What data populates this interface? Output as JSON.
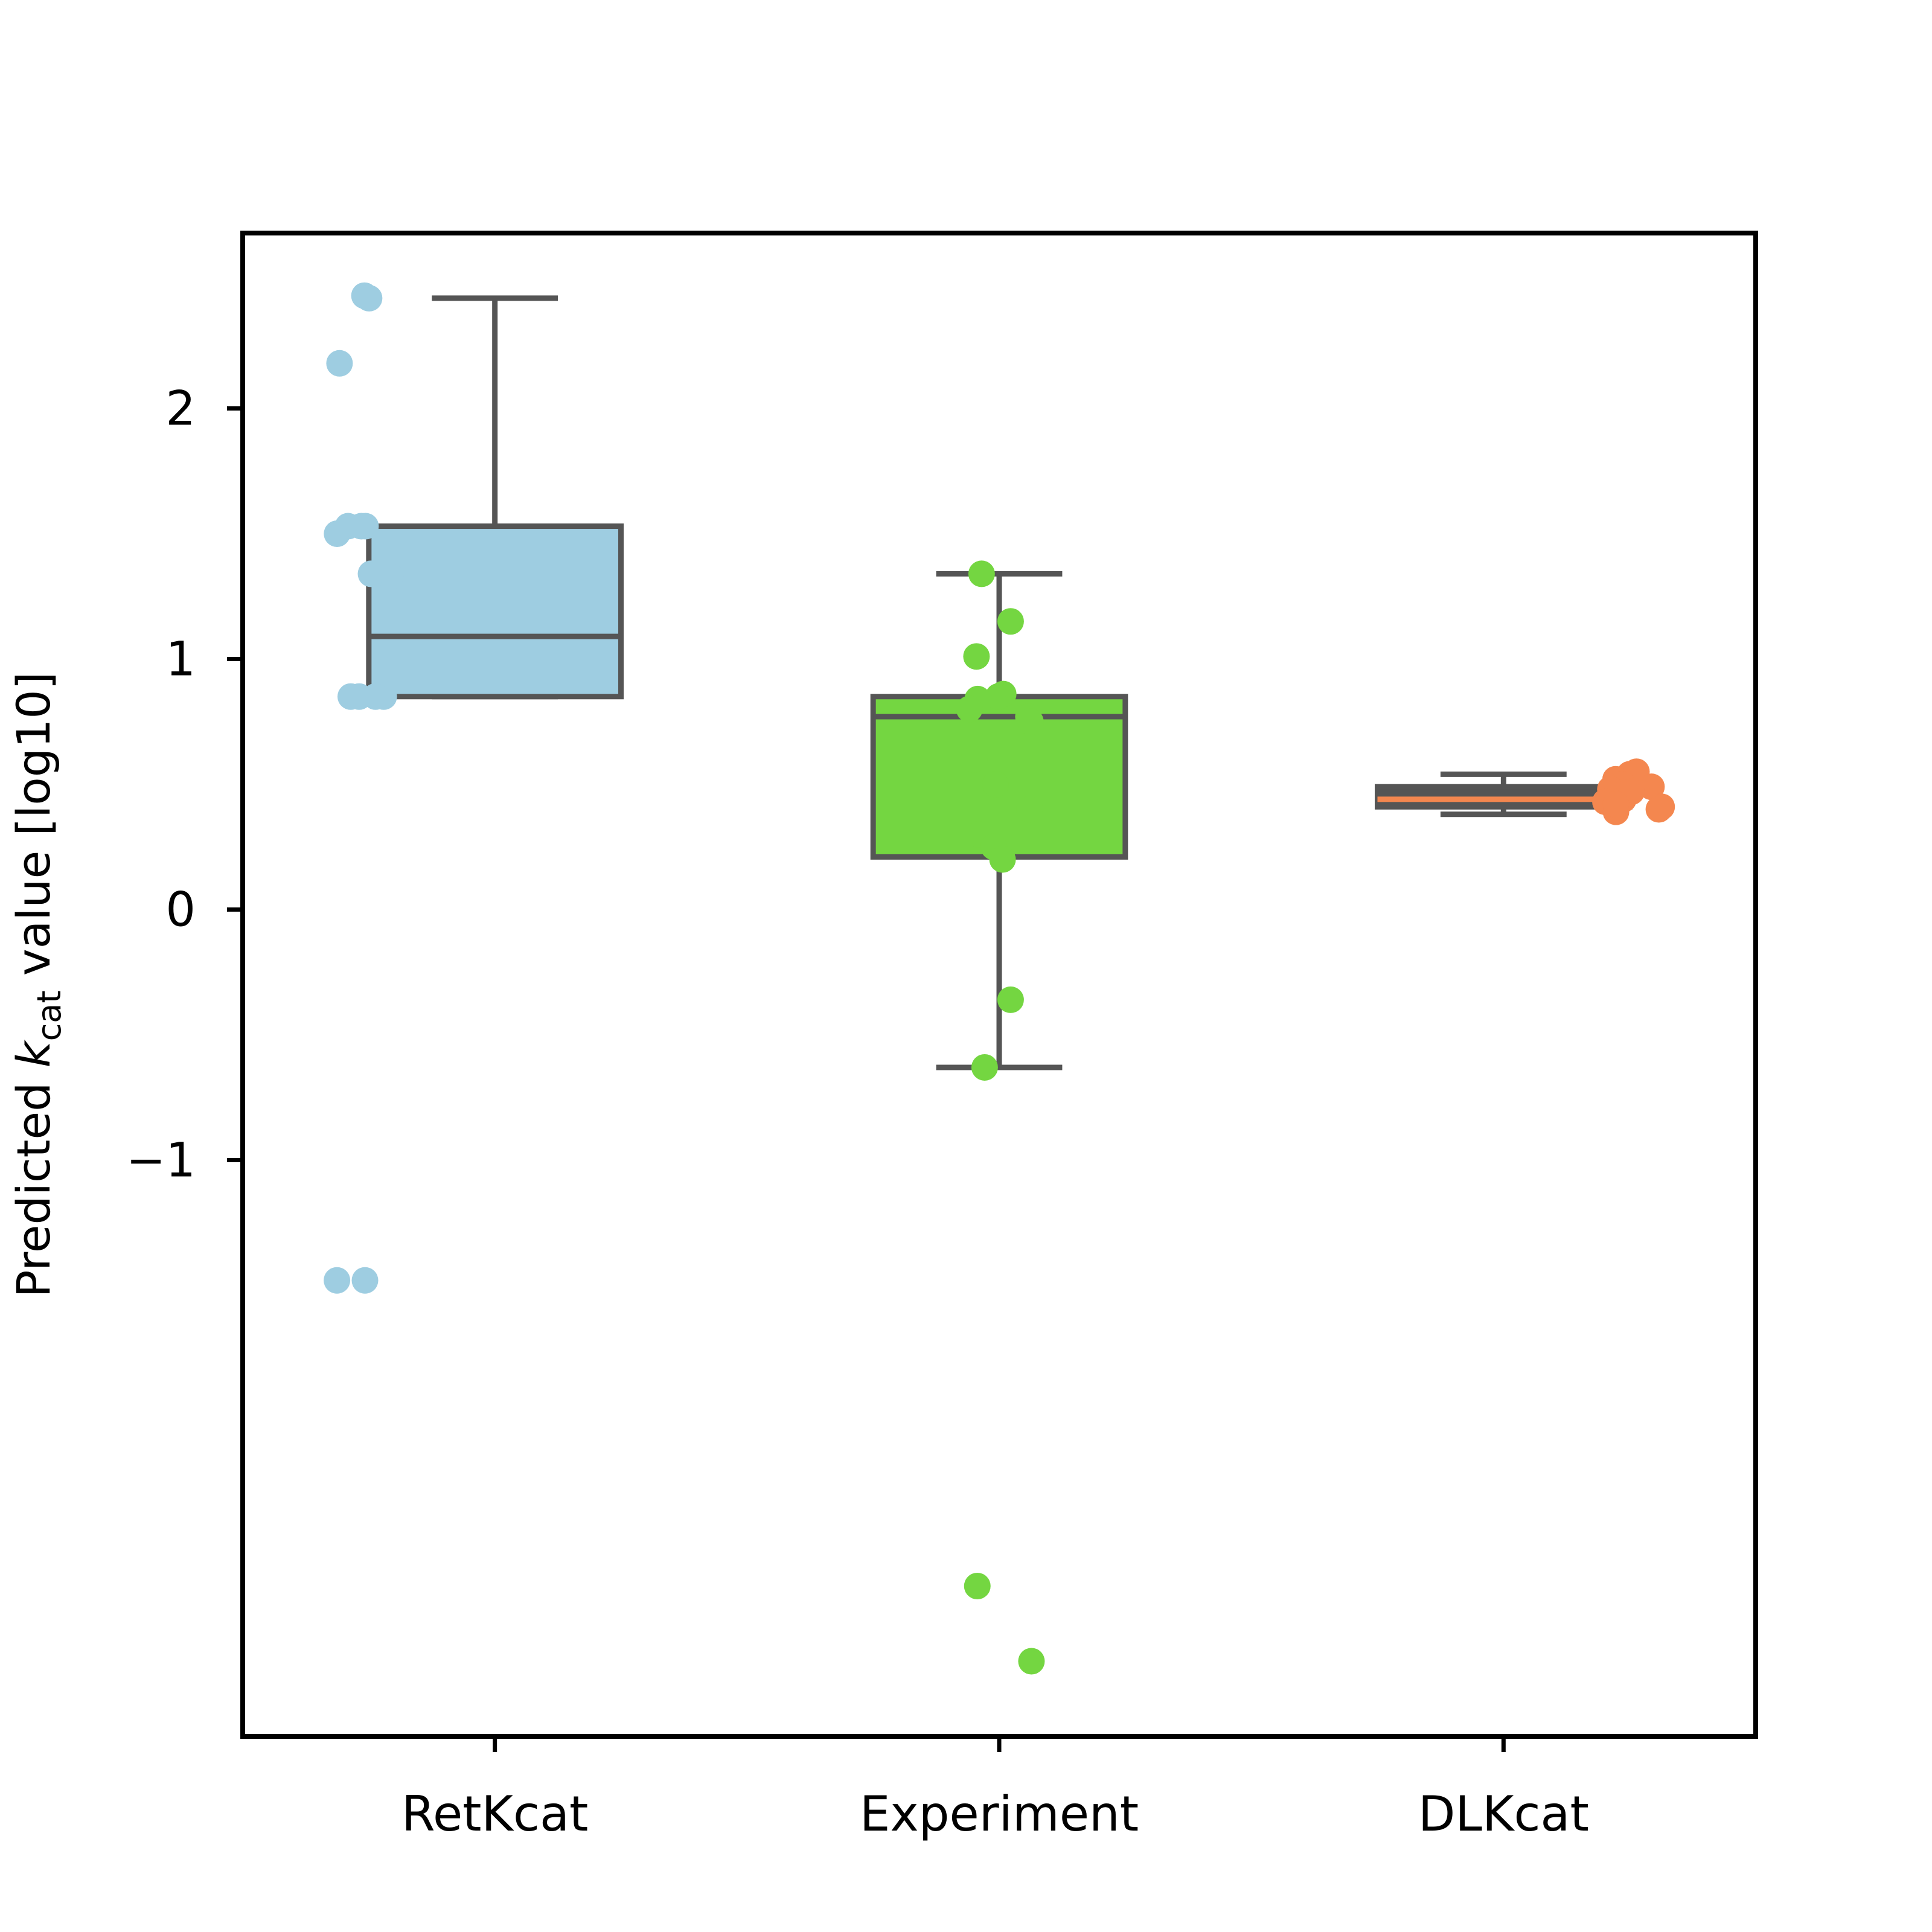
{
  "chart_data": {
    "type": "box",
    "ylabel": {
      "prefix": "Predicted ",
      "italic": "k",
      "subscript": "cat",
      "suffix": " value [log10]"
    },
    "ylim": [
      -3.3,
      2.7
    ],
    "yticks": [
      -1,
      0,
      1,
      2
    ],
    "ytick_labels": [
      "−1",
      "0",
      "1",
      "2"
    ],
    "categories": [
      "RetKcat",
      "Experiment",
      "DLKcat"
    ],
    "grid": false,
    "legend": "none",
    "boxes": [
      {
        "name": "RetKcat",
        "fill": "#9ecde1",
        "median_color": "#555555",
        "whisker_low": 0.85,
        "q1": 0.85,
        "median": 1.09,
        "q3": 1.53,
        "whisker_high": 2.44,
        "points": [
          2.45,
          2.44,
          2.18,
          1.53,
          1.53,
          1.53,
          1.5,
          1.33,
          1.34,
          0.85,
          0.85,
          0.85,
          0.85,
          -1.48,
          -1.48
        ]
      },
      {
        "name": "Experiment",
        "fill": "#74d641",
        "median_color": "#555555",
        "whisker_low": -0.63,
        "q1": 0.21,
        "median": 0.77,
        "q3": 0.85,
        "whisker_high": 1.34,
        "points": [
          1.34,
          1.15,
          1.01,
          0.86,
          0.85,
          0.84,
          0.8,
          0.77,
          0.75,
          0.6,
          0.5,
          0.4,
          0.3,
          0.25,
          0.2,
          -0.36,
          -0.63,
          -2.7,
          -3.0
        ]
      },
      {
        "name": "DLKcat",
        "fill": "#555555",
        "median_color": "#f4874f",
        "whisker_low": 0.38,
        "q1": 0.41,
        "median": 0.44,
        "q3": 0.49,
        "whisker_high": 0.54,
        "points": [
          0.54,
          0.52,
          0.55,
          0.5,
          0.48,
          0.49,
          0.46,
          0.44,
          0.43,
          0.41,
          0.39,
          0.4,
          0.47,
          0.42
        ]
      }
    ],
    "point_colors": [
      "#9ecde1",
      "#74d641",
      "#f4874f"
    ]
  }
}
